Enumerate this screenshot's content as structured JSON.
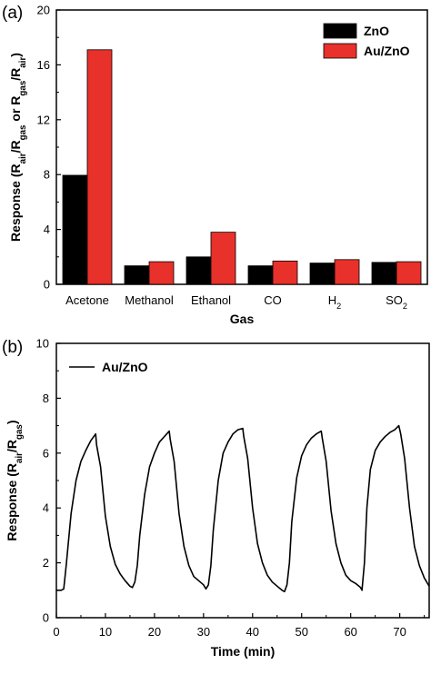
{
  "chart_data": [
    {
      "panel_label": "(a)",
      "type": "bar",
      "categories": [
        "Acetone",
        "Methanol",
        "Ethanol",
        "CO",
        "H2",
        "SO2"
      ],
      "category_labels": [
        {
          "base": "Acetone",
          "sub": ""
        },
        {
          "base": "Methanol",
          "sub": ""
        },
        {
          "base": "Ethanol",
          "sub": ""
        },
        {
          "base": "CO",
          "sub": ""
        },
        {
          "base": "H",
          "sub": "2"
        },
        {
          "base": "SO",
          "sub": "2"
        }
      ],
      "series": [
        {
          "name": "ZnO",
          "color": "#000000",
          "values": [
            7.95,
            1.35,
            2.0,
            1.35,
            1.55,
            1.6
          ]
        },
        {
          "name": "Au/ZnO",
          "color": "#e8312a",
          "values": [
            17.1,
            1.65,
            3.8,
            1.7,
            1.8,
            1.65
          ]
        }
      ],
      "xlabel": "Gas",
      "ylabel": {
        "parts": [
          {
            "t": "Response (R"
          },
          {
            "t": "air",
            "sub": true
          },
          {
            "t": "/R"
          },
          {
            "t": "gas",
            "sub": true
          },
          {
            "t": " or R"
          },
          {
            "t": "gas",
            "sub": true
          },
          {
            "t": "/R"
          },
          {
            "t": "air",
            "sub": true
          },
          {
            "t": ")"
          }
        ]
      },
      "ylim": [
        0,
        20
      ],
      "yticks": [
        0,
        4,
        8,
        12,
        16,
        20
      ],
      "legend_position": "top-right"
    },
    {
      "panel_label": "(b)",
      "type": "line",
      "series": [
        {
          "name": "Au/ZnO",
          "color": "#000000",
          "x": [
            0,
            1,
            1.5,
            2,
            3,
            4,
            5,
            6,
            7,
            8,
            8.2,
            9,
            10,
            11,
            12,
            13,
            14,
            15,
            15.5,
            16,
            16.5,
            17,
            18,
            19,
            20,
            21,
            22,
            23,
            23.2,
            24,
            25,
            26,
            27,
            28,
            29,
            30,
            30.5,
            31,
            31.5,
            32,
            33,
            34,
            35,
            36,
            37,
            38,
            38.2,
            39,
            40,
            41,
            42,
            43,
            44,
            45,
            46,
            46.5,
            47,
            47.5,
            48,
            49,
            50,
            51,
            52,
            53,
            54,
            54.2,
            55,
            56,
            57,
            58,
            59,
            60,
            61,
            62,
            62.3,
            62.8,
            63.3,
            64,
            65,
            66,
            67,
            68,
            69,
            69.8,
            70.2,
            71,
            72,
            73,
            74,
            75,
            76
          ],
          "y": [
            1.0,
            1.0,
            1.05,
            1.9,
            3.8,
            5.0,
            5.7,
            6.1,
            6.45,
            6.7,
            6.3,
            5.5,
            3.7,
            2.6,
            1.95,
            1.6,
            1.35,
            1.15,
            1.1,
            1.3,
            1.9,
            3.0,
            4.5,
            5.5,
            6.0,
            6.4,
            6.6,
            6.8,
            6.5,
            5.7,
            3.8,
            2.6,
            1.9,
            1.5,
            1.35,
            1.2,
            1.05,
            1.2,
            1.9,
            3.2,
            5.0,
            6.0,
            6.4,
            6.7,
            6.85,
            6.9,
            6.6,
            5.8,
            4.0,
            2.7,
            2.0,
            1.55,
            1.3,
            1.15,
            1.0,
            0.95,
            1.2,
            2.0,
            3.5,
            5.1,
            5.9,
            6.3,
            6.55,
            6.7,
            6.8,
            6.55,
            5.7,
            3.9,
            2.7,
            2.0,
            1.55,
            1.35,
            1.25,
            1.1,
            1.0,
            2.0,
            4.0,
            5.4,
            6.1,
            6.4,
            6.6,
            6.75,
            6.85,
            7.0,
            6.7,
            5.8,
            4.0,
            2.6,
            1.9,
            1.45,
            1.15
          ]
        }
      ],
      "xlabel": "Time (min)",
      "ylabel": {
        "parts": [
          {
            "t": "Response (R"
          },
          {
            "t": "air",
            "sub": true
          },
          {
            "t": "/R"
          },
          {
            "t": "gas",
            "sub": true
          },
          {
            "t": ")"
          }
        ]
      },
      "xlim": [
        0,
        76
      ],
      "ylim": [
        0,
        10
      ],
      "xticks": [
        0,
        10,
        20,
        30,
        40,
        50,
        60,
        70
      ],
      "yticks": [
        0,
        2,
        4,
        6,
        8,
        10
      ],
      "legend_position": "top-left"
    }
  ]
}
